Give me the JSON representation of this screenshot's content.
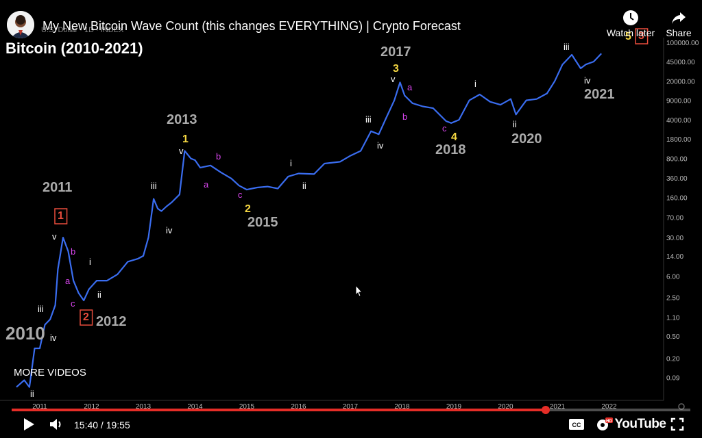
{
  "video": {
    "title": "My New Bitcoin Wave Count (this changes EVERYTHING) | Crypto Forecast",
    "overlay_small_text": "U.S. Dollar · 1D · INDEX",
    "watch_later_label": "Watch later",
    "share_label": "Share",
    "more_videos_label": "MORE VIDEOS",
    "current_time": "15:40",
    "duration": "19:55",
    "time_display": "15:40 / 19:55",
    "progress": 0.787,
    "youtube_label": "YouTube"
  },
  "chart_data": {
    "type": "line",
    "title": "Bitcoin (2010-2021)",
    "y_scale": "log",
    "x_ticks": [
      "2011",
      "2012",
      "2013",
      "2014",
      "2015",
      "2016",
      "2017",
      "2018",
      "2019",
      "2020",
      "2021",
      "2022"
    ],
    "y_ticks": [
      "100000.00",
      "45000.00",
      "20000.00",
      "9000.00",
      "4000.00",
      "1800.00",
      "800.00",
      "360.00",
      "160.00",
      "70.00",
      "30.00",
      "14.00",
      "6.00",
      "2.50",
      "1.10",
      "0.50",
      "0.20",
      "0.09"
    ],
    "series": [
      {
        "color": "#3a6df0",
        "x": [
          2010.55,
          2010.7,
          2010.8,
          2010.9,
          2011.0,
          2011.1,
          2011.2,
          2011.3,
          2011.35,
          2011.45,
          2011.55,
          2011.65,
          2011.75,
          2011.85,
          2011.95,
          2012.1,
          2012.3,
          2012.5,
          2012.7,
          2012.9,
          2013.0,
          2013.1,
          2013.2,
          2013.28,
          2013.35,
          2013.45,
          2013.55,
          2013.7,
          2013.8,
          2013.92,
          2014.0,
          2014.1,
          2014.3,
          2014.5,
          2014.7,
          2014.85,
          2015.0,
          2015.2,
          2015.4,
          2015.6,
          2015.8,
          2016.0,
          2016.3,
          2016.5,
          2016.8,
          2017.0,
          2017.2,
          2017.4,
          2017.55,
          2017.7,
          2017.85,
          2017.96,
          2018.05,
          2018.2,
          2018.4,
          2018.6,
          2018.85,
          2018.95,
          2019.1,
          2019.3,
          2019.5,
          2019.7,
          2019.9,
          2020.1,
          2020.2,
          2020.4,
          2020.6,
          2020.8,
          2020.95,
          2021.1,
          2021.28,
          2021.45,
          2021.55,
          2021.7,
          2021.85
        ],
        "y": [
          0.06,
          0.08,
          0.06,
          0.3,
          0.3,
          0.8,
          1.0,
          1.8,
          8.0,
          30.0,
          17.0,
          5.0,
          3.0,
          2.2,
          3.5,
          5.0,
          5.0,
          6.5,
          11.0,
          12.5,
          14.0,
          30.0,
          150.0,
          100.0,
          90.0,
          110.0,
          130.0,
          180.0,
          1100.0,
          800.0,
          750.0,
          550.0,
          600.0,
          450.0,
          350.0,
          260.0,
          220.0,
          240.0,
          250.0,
          230.0,
          380.0,
          430.0,
          420.0,
          650.0,
          700.0,
          900.0,
          1100.0,
          2500.0,
          2200.0,
          4500.0,
          9000.0,
          19000.0,
          11000.0,
          8000.0,
          7000.0,
          6500.0,
          3800.0,
          3500.0,
          4000.0,
          9000.0,
          11500.0,
          8500.0,
          7500.0,
          9500.0,
          5000.0,
          9000.0,
          9500.0,
          12000.0,
          20000.0,
          40000.0,
          60000.0,
          34000.0,
          40000.0,
          45000.0,
          63000.0
        ]
      }
    ],
    "annotations": [
      {
        "label": "2010",
        "color": "#aaaaaa"
      },
      {
        "label": "ii",
        "color": "#ffffff"
      },
      {
        "label": "iii",
        "color": "#ffffff"
      },
      {
        "label": "iv",
        "color": "#ffffff"
      },
      {
        "label": "v",
        "color": "#ffffff"
      },
      {
        "label": "1",
        "color": "#e74c3c",
        "boxed": true
      },
      {
        "label": "a",
        "color": "#d946ef"
      },
      {
        "label": "b",
        "color": "#d946ef"
      },
      {
        "label": "c",
        "color": "#d946ef"
      },
      {
        "label": "2",
        "color": "#e74c3c",
        "boxed": true
      },
      {
        "label": "2011",
        "color": "#aaaaaa"
      },
      {
        "label": "2012",
        "color": "#aaaaaa"
      },
      {
        "label": "i",
        "color": "#ffffff"
      },
      {
        "label": "ii",
        "color": "#ffffff"
      },
      {
        "label": "iii",
        "color": "#ffffff"
      },
      {
        "label": "iv",
        "color": "#ffffff"
      },
      {
        "label": "v",
        "color": "#ffffff"
      },
      {
        "label": "2013",
        "color": "#aaaaaa"
      },
      {
        "label": "1",
        "color": "#f5d742"
      },
      {
        "label": "a",
        "color": "#d946ef"
      },
      {
        "label": "b",
        "color": "#d946ef"
      },
      {
        "label": "c",
        "color": "#d946ef"
      },
      {
        "label": "2",
        "color": "#f5d742"
      },
      {
        "label": "2015",
        "color": "#aaaaaa"
      },
      {
        "label": "i",
        "color": "#ffffff"
      },
      {
        "label": "ii",
        "color": "#ffffff"
      },
      {
        "label": "iii",
        "color": "#ffffff"
      },
      {
        "label": "iv",
        "color": "#ffffff"
      },
      {
        "label": "v",
        "color": "#ffffff"
      },
      {
        "label": "2017",
        "color": "#aaaaaa"
      },
      {
        "label": "3",
        "color": "#f5d742"
      },
      {
        "label": "a",
        "color": "#d946ef"
      },
      {
        "label": "b",
        "color": "#d946ef"
      },
      {
        "label": "c",
        "color": "#d946ef"
      },
      {
        "label": "4",
        "color": "#f5d742"
      },
      {
        "label": "2018",
        "color": "#aaaaaa"
      },
      {
        "label": "i",
        "color": "#ffffff"
      },
      {
        "label": "ii",
        "color": "#ffffff"
      },
      {
        "label": "2020",
        "color": "#aaaaaa"
      },
      {
        "label": "iii",
        "color": "#ffffff"
      },
      {
        "label": "iv",
        "color": "#ffffff"
      },
      {
        "label": "2021",
        "color": "#aaaaaa"
      },
      {
        "label": "5",
        "color": "#f5d742"
      },
      {
        "label": "3",
        "color": "#e74c3c",
        "boxed": true
      }
    ],
    "grid": false,
    "background": "#000000"
  },
  "icons": {
    "play": "play-icon",
    "volume": "volume-icon",
    "captions": "captions-icon",
    "settings": "settings-hd-icon",
    "fullscreen": "fullscreen-icon",
    "clock": "clock-icon",
    "share": "share-icon"
  }
}
